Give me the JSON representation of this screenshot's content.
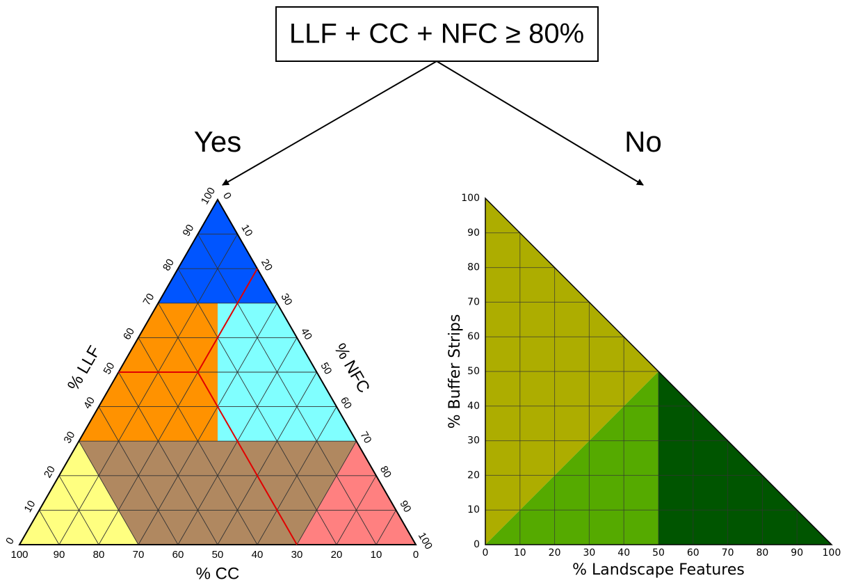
{
  "decision": {
    "condition": "LLF + CC + NFC ≥ 80%",
    "yes": "Yes",
    "no": "No"
  },
  "ternary": {
    "left_label": "% LLF",
    "right_label": "% NFC",
    "bottom_label": "% CC",
    "left_ticks": [
      0,
      10,
      20,
      30,
      40,
      50,
      60,
      70,
      80,
      90,
      100
    ],
    "right_ticks": [
      0,
      10,
      20,
      30,
      40,
      50,
      60,
      70,
      80,
      90,
      100
    ],
    "bottom_ticks": [
      0,
      10,
      20,
      30,
      40,
      50,
      60,
      70,
      80,
      90,
      100
    ]
  },
  "right_chart": {
    "xlabel": "% Landscape Features",
    "ylabel": "% Buffer Strips",
    "xticks": [
      0,
      10,
      20,
      30,
      40,
      50,
      60,
      70,
      80,
      90,
      100
    ],
    "yticks": [
      0,
      10,
      20,
      30,
      40,
      50,
      60,
      70,
      80,
      90,
      100
    ]
  }
}
